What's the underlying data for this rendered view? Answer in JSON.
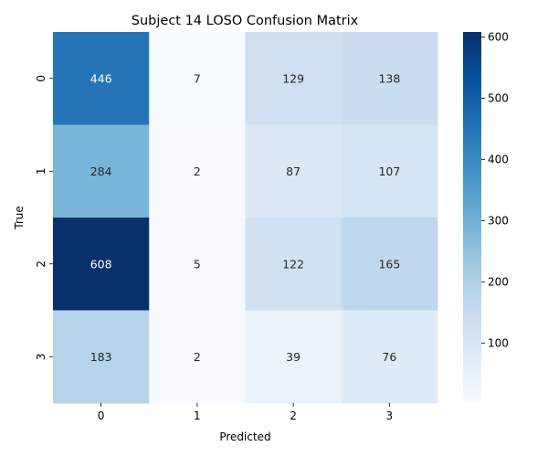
{
  "chart_data": {
    "type": "heatmap",
    "title": "Subject 14 LOSO Confusion Matrix",
    "xlabel": "Predicted",
    "ylabel": "True",
    "x_categories": [
      "0",
      "1",
      "2",
      "3"
    ],
    "y_categories": [
      "0",
      "1",
      "2",
      "3"
    ],
    "values": [
      [
        446,
        7,
        129,
        138
      ],
      [
        284,
        2,
        87,
        107
      ],
      [
        608,
        5,
        122,
        165
      ],
      [
        183,
        2,
        39,
        76
      ]
    ],
    "colormap": "Blues",
    "color_range": [
      2,
      608
    ],
    "colorbar_ticks": [
      100,
      200,
      300,
      400,
      500,
      600
    ]
  }
}
